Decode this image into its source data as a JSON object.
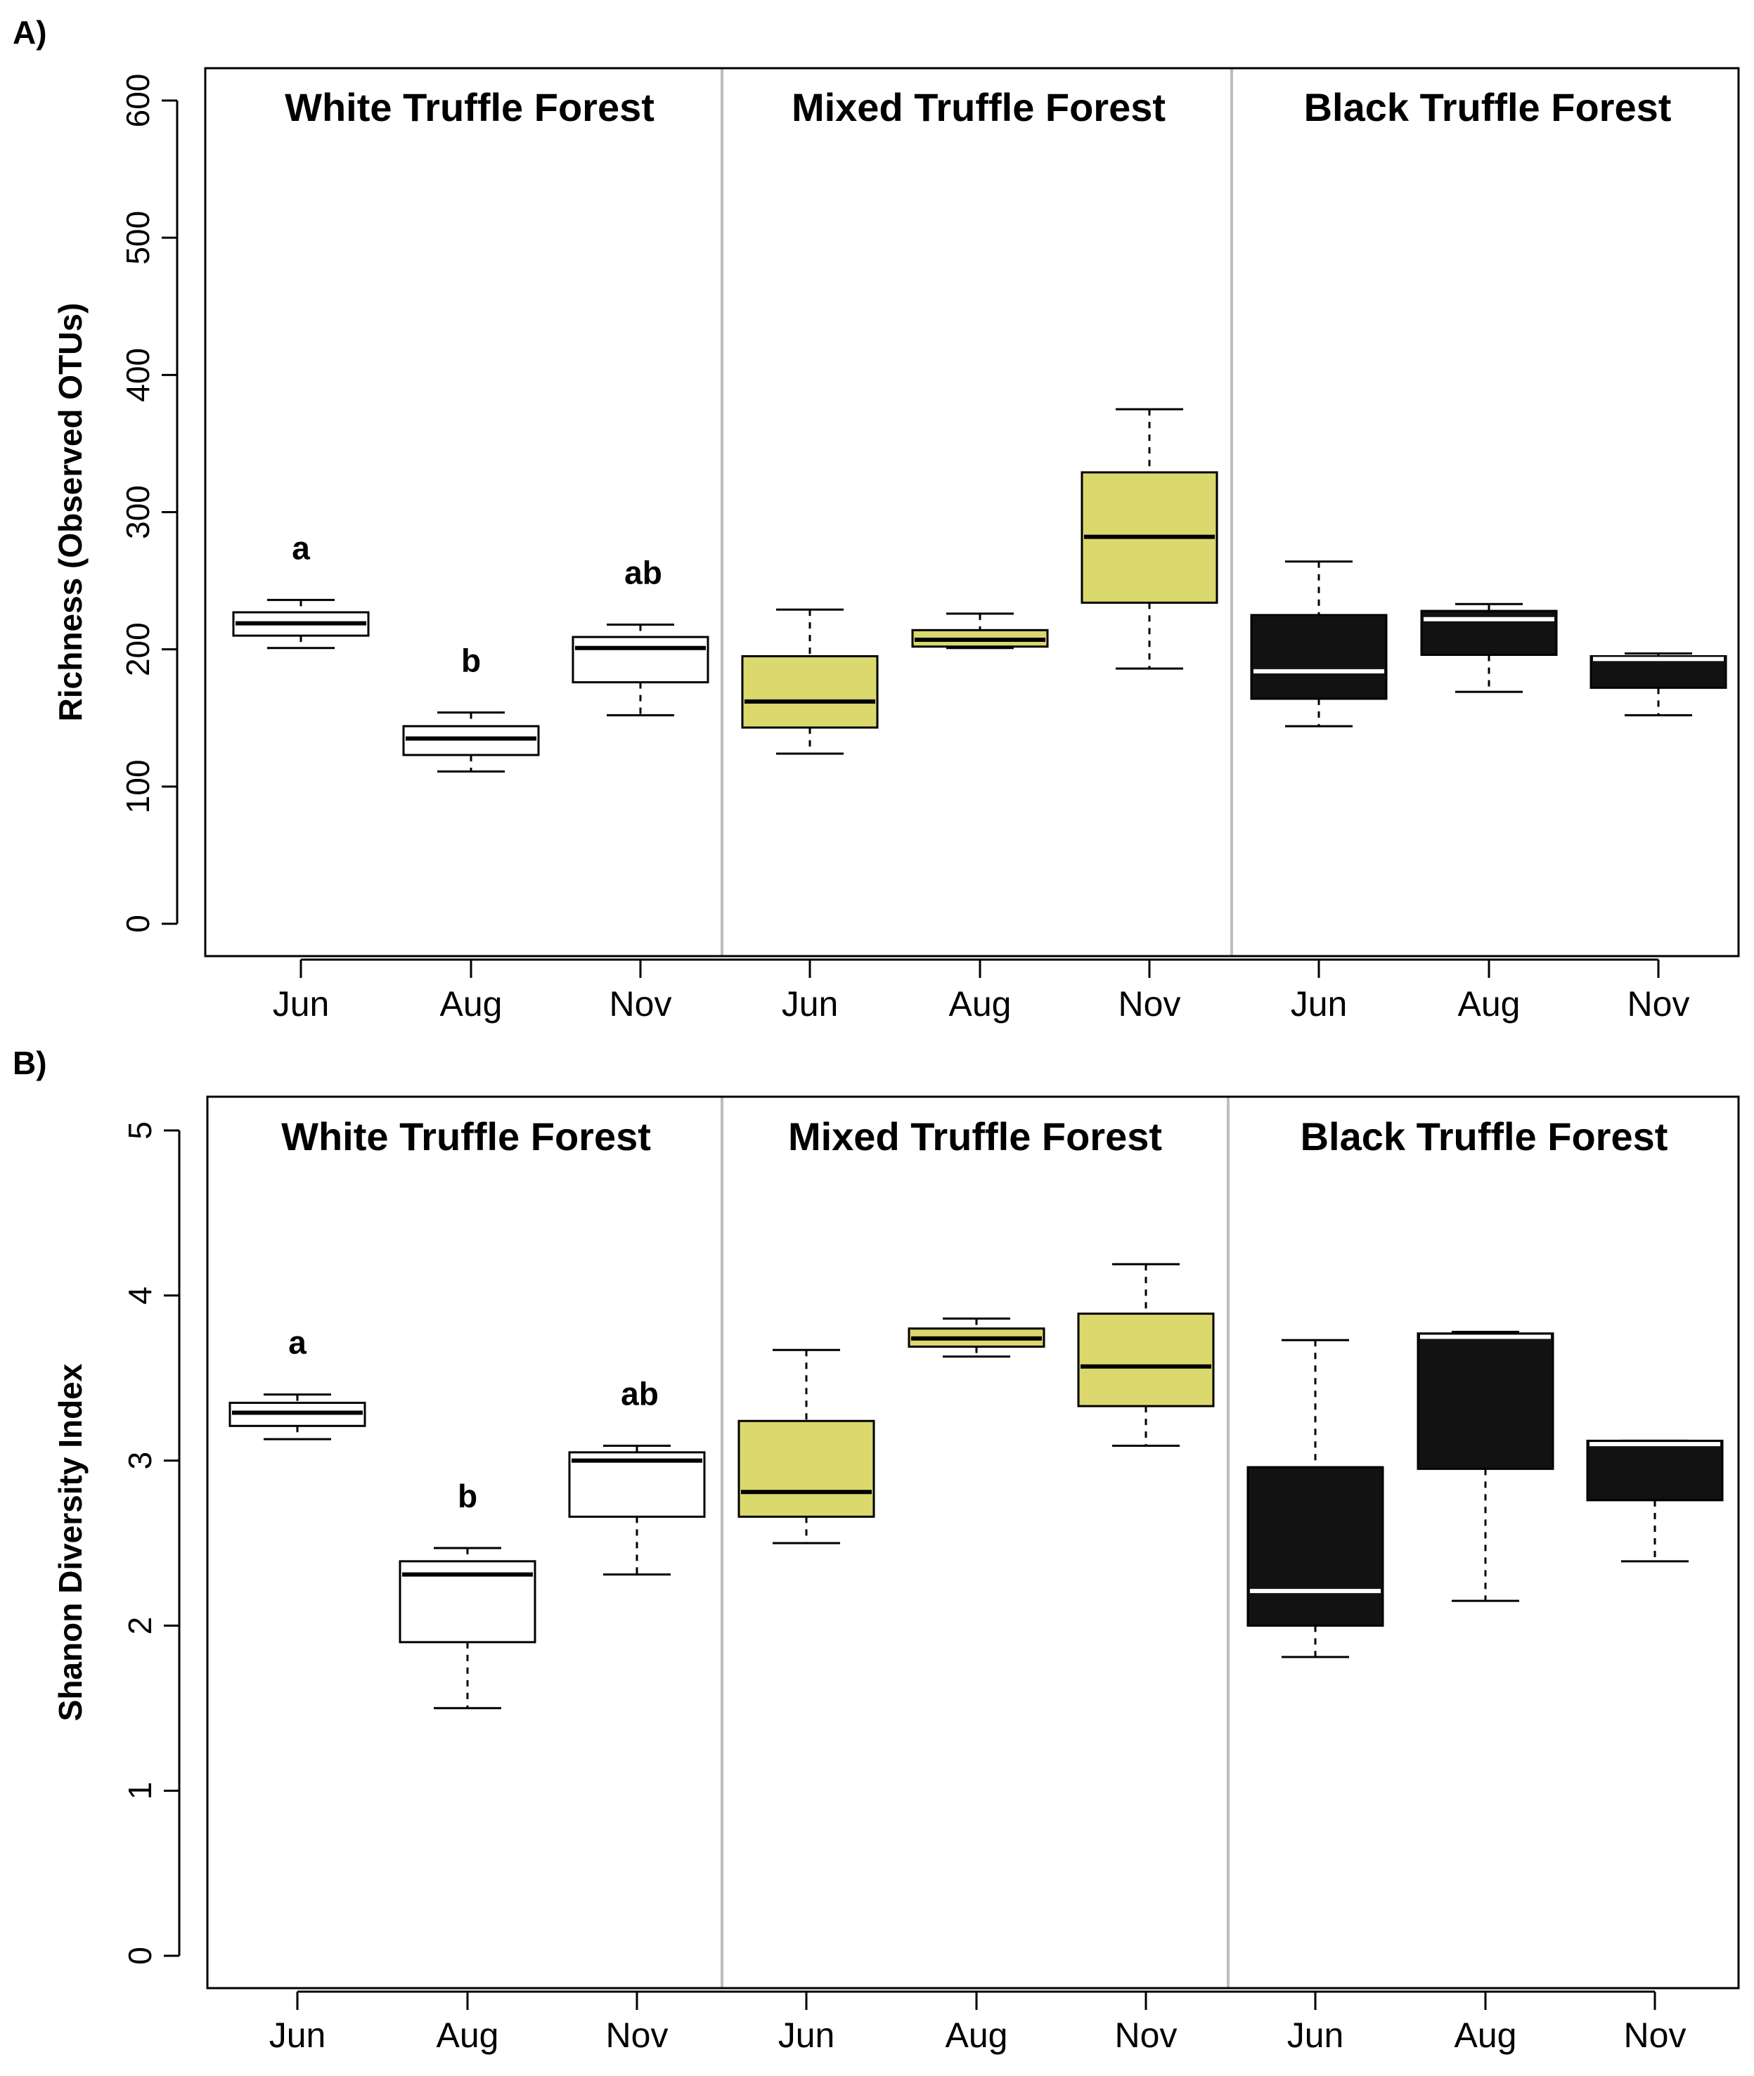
{
  "chart_data": [
    {
      "type": "boxplot",
      "panel_label": "A)",
      "ylabel": "Richness (Observed OTUs)",
      "ylim": [
        0,
        600
      ],
      "yticks": [
        0,
        100,
        200,
        300,
        400,
        500,
        600
      ],
      "grid": false,
      "groups": [
        "White Truffle Forest",
        "Mixed Truffle Forest",
        "Black Truffle Forest"
      ],
      "categories": [
        "Jun",
        "Aug",
        "Nov",
        "Jun",
        "Aug",
        "Nov",
        "Jun",
        "Aug",
        "Nov"
      ],
      "boxes": [
        {
          "group": "White Truffle Forest",
          "month": "Jun",
          "min": 201,
          "q1": 210,
          "median": 219,
          "q3": 227,
          "max": 236,
          "fill": "#ffffff",
          "median_color": "#000000",
          "letter": "a"
        },
        {
          "group": "White Truffle Forest",
          "month": "Aug",
          "min": 111,
          "q1": 123,
          "median": 135,
          "q3": 144,
          "max": 154,
          "fill": "#ffffff",
          "median_color": "#000000",
          "letter": "b"
        },
        {
          "group": "White Truffle Forest",
          "month": "Nov",
          "min": 152,
          "q1": 176,
          "median": 201,
          "q3": 209,
          "max": 218,
          "fill": "#ffffff",
          "median_color": "#000000",
          "letter": "ab"
        },
        {
          "group": "Mixed Truffle Forest",
          "month": "Jun",
          "min": 124,
          "q1": 143,
          "median": 162,
          "q3": 195,
          "max": 229,
          "fill": "#dbd86e",
          "median_color": "#000000",
          "letter": ""
        },
        {
          "group": "Mixed Truffle Forest",
          "month": "Aug",
          "min": 201,
          "q1": 202,
          "median": 207,
          "q3": 214,
          "max": 226,
          "fill": "#dbd86e",
          "median_color": "#000000",
          "letter": ""
        },
        {
          "group": "Mixed Truffle Forest",
          "month": "Nov",
          "min": 186,
          "q1": 234,
          "median": 282,
          "q3": 329,
          "max": 375,
          "fill": "#dbd86e",
          "median_color": "#000000",
          "letter": ""
        },
        {
          "group": "Black Truffle Forest",
          "month": "Jun",
          "min": 144,
          "q1": 164,
          "median": 184,
          "q3": 225,
          "max": 264,
          "fill": "#121212",
          "median_color": "#ffffff",
          "letter": ""
        },
        {
          "group": "Black Truffle Forest",
          "month": "Aug",
          "min": 169,
          "q1": 196,
          "median": 222,
          "q3": 228,
          "max": 233,
          "fill": "#121212",
          "median_color": "#ffffff",
          "letter": ""
        },
        {
          "group": "Black Truffle Forest",
          "month": "Nov",
          "min": 152,
          "q1": 172,
          "median": 193,
          "q3": 195,
          "max": 197,
          "fill": "#121212",
          "median_color": "#ffffff",
          "letter": ""
        }
      ]
    },
    {
      "type": "boxplot",
      "panel_label": "B)",
      "ylabel": "Shanon Diversity Index",
      "ylim": [
        0,
        5
      ],
      "yticks": [
        0,
        1,
        2,
        3,
        4,
        5
      ],
      "grid": false,
      "groups": [
        "White Truffle Forest",
        "Mixed Truffle Forest",
        "Black Truffle Forest"
      ],
      "categories": [
        "Jun",
        "Aug",
        "Nov",
        "Jun",
        "Aug",
        "Nov",
        "Jun",
        "Aug",
        "Nov"
      ],
      "boxes": [
        {
          "group": "White Truffle Forest",
          "month": "Jun",
          "min": 3.13,
          "q1": 3.21,
          "median": 3.29,
          "q3": 3.35,
          "max": 3.4,
          "fill": "#ffffff",
          "median_color": "#000000",
          "letter": "a"
        },
        {
          "group": "White Truffle Forest",
          "month": "Aug",
          "min": 1.5,
          "q1": 1.9,
          "median": 2.31,
          "q3": 2.39,
          "max": 2.47,
          "fill": "#ffffff",
          "median_color": "#000000",
          "letter": "b"
        },
        {
          "group": "White Truffle Forest",
          "month": "Nov",
          "min": 2.31,
          "q1": 2.66,
          "median": 3.0,
          "q3": 3.05,
          "max": 3.09,
          "fill": "#ffffff",
          "median_color": "#000000",
          "letter": "ab"
        },
        {
          "group": "Mixed Truffle Forest",
          "month": "Jun",
          "min": 2.5,
          "q1": 2.66,
          "median": 2.81,
          "q3": 3.24,
          "max": 3.67,
          "fill": "#dbd86e",
          "median_color": "#000000",
          "letter": ""
        },
        {
          "group": "Mixed Truffle Forest",
          "month": "Aug",
          "min": 3.63,
          "q1": 3.69,
          "median": 3.74,
          "q3": 3.8,
          "max": 3.86,
          "fill": "#dbd86e",
          "median_color": "#000000",
          "letter": ""
        },
        {
          "group": "Mixed Truffle Forest",
          "month": "Nov",
          "min": 3.09,
          "q1": 3.33,
          "median": 3.57,
          "q3": 3.89,
          "max": 4.19,
          "fill": "#dbd86e",
          "median_color": "#000000",
          "letter": ""
        },
        {
          "group": "Black Truffle Forest",
          "month": "Jun",
          "min": 1.81,
          "q1": 2.0,
          "median": 2.21,
          "q3": 2.96,
          "max": 3.73,
          "fill": "#121212",
          "median_color": "#ffffff",
          "letter": ""
        },
        {
          "group": "Black Truffle Forest",
          "month": "Aug",
          "min": 2.15,
          "q1": 2.95,
          "median": 3.75,
          "q3": 3.77,
          "max": 3.78,
          "fill": "#121212",
          "median_color": "#ffffff",
          "letter": ""
        },
        {
          "group": "Black Truffle Forest",
          "month": "Nov",
          "min": 2.39,
          "q1": 2.76,
          "median": 3.1,
          "q3": 3.12,
          "max": 3.12,
          "fill": "#121212",
          "median_color": "#ffffff",
          "letter": ""
        }
      ]
    }
  ]
}
